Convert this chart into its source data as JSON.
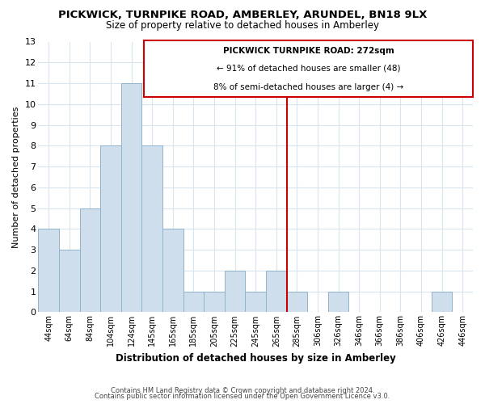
{
  "title": "PICKWICK, TURNPIKE ROAD, AMBERLEY, ARUNDEL, BN18 9LX",
  "subtitle": "Size of property relative to detached houses in Amberley",
  "xlabel": "Distribution of detached houses by size in Amberley",
  "ylabel": "Number of detached properties",
  "bar_color": "#cfdeed",
  "bar_edge_color": "#90b4cc",
  "bin_labels": [
    "44sqm",
    "64sqm",
    "84sqm",
    "104sqm",
    "124sqm",
    "145sqm",
    "165sqm",
    "185sqm",
    "205sqm",
    "225sqm",
    "245sqm",
    "265sqm",
    "285sqm",
    "306sqm",
    "326sqm",
    "346sqm",
    "366sqm",
    "386sqm",
    "406sqm",
    "426sqm",
    "446sqm"
  ],
  "values": [
    4,
    3,
    5,
    8,
    11,
    8,
    4,
    1,
    1,
    2,
    1,
    2,
    1,
    0,
    1,
    0,
    0,
    0,
    0,
    1,
    0
  ],
  "annotation_line1": "PICKWICK TURNPIKE ROAD: 272sqm",
  "annotation_line2": "← 91% of detached houses are smaller (48)",
  "annotation_line3": "8% of semi-detached houses are larger (4) →",
  "ylim": [
    0,
    13
  ],
  "yticks": [
    0,
    1,
    2,
    3,
    4,
    5,
    6,
    7,
    8,
    9,
    10,
    11,
    12,
    13
  ],
  "footer1": "Contains HM Land Registry data © Crown copyright and database right 2024.",
  "footer2": "Contains public sector information licensed under the Open Government Licence v3.0.",
  "grid_color": "#d8e4ee",
  "vline_color": "#cc0000",
  "box_color": "#cc0000",
  "background_color": "#ffffff",
  "vline_index": 11.5
}
